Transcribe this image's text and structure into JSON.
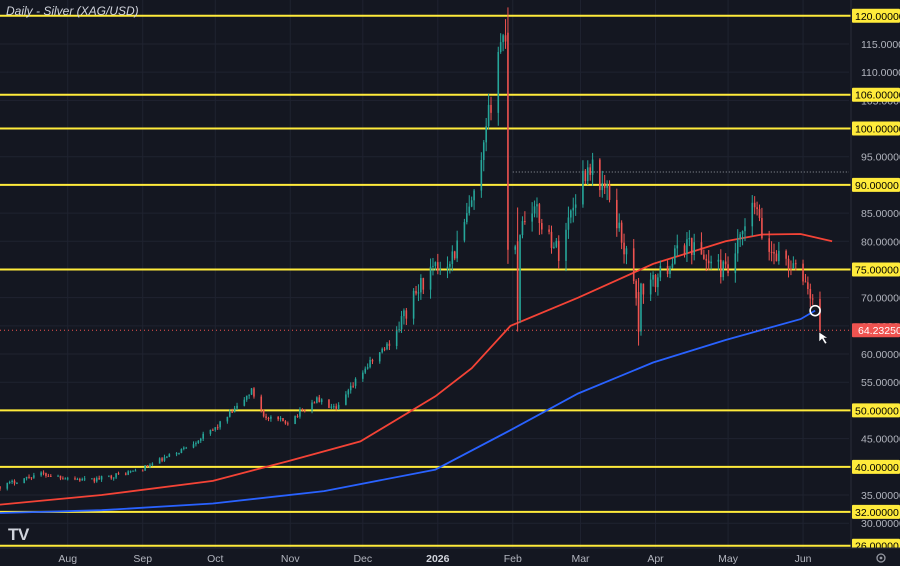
{
  "chart_data": {
    "type": "candlestick",
    "title": "Daily - Silver (XAG/USD)",
    "ylim": [
      25.6,
      122.8
    ],
    "y_ticks": [
      "30.00000",
      "35.00000",
      "40.00000",
      "45.00000",
      "50.00000",
      "55.00000",
      "60.00000",
      "65.00000",
      "70.00000",
      "75.00000",
      "80.00000",
      "85.00000",
      "90.00000",
      "95.00000",
      "100.00000",
      "105.00000",
      "110.00000",
      "115.00000",
      "120.00000"
    ],
    "y_tick_values": [
      30,
      35,
      40,
      45,
      50,
      55,
      60,
      65,
      70,
      75,
      80,
      85,
      90,
      95,
      100,
      105,
      110,
      115,
      120
    ],
    "x_ticks": [
      {
        "label": "Aug",
        "date": "2025-08-01",
        "bold": false
      },
      {
        "label": "Sep",
        "date": "2025-09-01",
        "bold": false
      },
      {
        "label": "Oct",
        "date": "2025-10-01",
        "bold": false
      },
      {
        "label": "Nov",
        "date": "2025-11-01",
        "bold": false
      },
      {
        "label": "Dec",
        "date": "2025-12-01",
        "bold": false
      },
      {
        "label": "2026",
        "date": "2026-01-01",
        "bold": true
      },
      {
        "label": "Feb",
        "date": "2026-02-01",
        "bold": false
      },
      {
        "label": "Mar",
        "date": "2026-03-01",
        "bold": false
      },
      {
        "label": "Apr",
        "date": "2026-04-01",
        "bold": false
      },
      {
        "label": "May",
        "date": "2026-05-01",
        "bold": false
      },
      {
        "label": "Jun",
        "date": "2026-06-01",
        "bold": false
      }
    ],
    "x_range": [
      "2025-07-04",
      "2026-06-20"
    ],
    "levels": [
      {
        "value": 120,
        "label": "120.00000"
      },
      {
        "value": 106,
        "label": "106.00000"
      },
      {
        "value": 100,
        "label": "100.00000"
      },
      {
        "value": 90,
        "label": "90.00000"
      },
      {
        "value": 75,
        "label": "75.00000"
      },
      {
        "value": 50,
        "label": "50.00000"
      },
      {
        "value": 40,
        "label": "40.00000"
      },
      {
        "value": 32,
        "label": "32.00000"
      },
      {
        "value": 26,
        "label": "26.00000"
      }
    ],
    "last_price": {
      "value": 64.2325,
      "label": "64.23250"
    },
    "dotted_high": {
      "value": 92.3,
      "from": "2026-02-01"
    },
    "marker": {
      "date": "2026-06-06",
      "value": 67.7
    },
    "price_path": [
      [
        "2025-07-04",
        36.5
      ],
      [
        "2025-07-20",
        38.8
      ],
      [
        "2025-08-10",
        37.5
      ],
      [
        "2025-08-31",
        39.5
      ],
      [
        "2025-09-15",
        42.5
      ],
      [
        "2025-09-30",
        46.5
      ],
      [
        "2025-10-10",
        50.5
      ],
      [
        "2025-10-16",
        53.5
      ],
      [
        "2025-10-22",
        48.5
      ],
      [
        "2025-10-31",
        48.0
      ],
      [
        "2025-11-12",
        52.0
      ],
      [
        "2025-11-20",
        50.0
      ],
      [
        "2025-12-01",
        57.0
      ],
      [
        "2025-12-12",
        62.0
      ],
      [
        "2025-12-26",
        73.0
      ],
      [
        "2026-01-08",
        78.0
      ],
      [
        "2026-01-18",
        90.0
      ],
      [
        "2026-01-26",
        114.0
      ],
      [
        "2026-01-29",
        117.0
      ],
      [
        "2026-02-01",
        78.5
      ],
      [
        "2026-02-08",
        87.0
      ],
      [
        "2026-02-20",
        78.0
      ],
      [
        "2026-03-01",
        91.0
      ],
      [
        "2026-03-05",
        93.5
      ],
      [
        "2026-03-14",
        87.0
      ],
      [
        "2026-03-24",
        71.0
      ],
      [
        "2026-03-31",
        72.5
      ],
      [
        "2026-04-14",
        80.0
      ],
      [
        "2026-04-24",
        76.0
      ],
      [
        "2026-05-01",
        74.5
      ],
      [
        "2026-05-12",
        86.5
      ],
      [
        "2026-05-16",
        79.0
      ],
      [
        "2026-05-24",
        77.0
      ],
      [
        "2026-06-02",
        73.0
      ],
      [
        "2026-06-08",
        64.2
      ]
    ],
    "special_bars": [
      {
        "date": "2026-01-30",
        "open": 117.0,
        "close": 78.5,
        "high": 121.5,
        "low": 76.0
      },
      {
        "date": "2026-02-03",
        "open": 80.0,
        "close": 66.0,
        "high": 86.0,
        "low": 64.0
      },
      {
        "date": "2026-03-25",
        "open": 71.0,
        "close": 64.0,
        "high": 73.5,
        "low": 61.5
      }
    ],
    "ma200": [
      [
        "2025-07-04",
        31.8
      ],
      [
        "2025-08-15",
        32.3
      ],
      [
        "2025-09-30",
        33.5
      ],
      [
        "2025-11-15",
        35.7
      ],
      [
        "2025-12-31",
        39.5
      ],
      [
        "2026-01-31",
        46.5
      ],
      [
        "2026-02-28",
        53.0
      ],
      [
        "2026-03-31",
        58.5
      ],
      [
        "2026-04-30",
        62.5
      ],
      [
        "2026-05-31",
        66.2
      ],
      [
        "2026-06-06",
        67.7
      ]
    ],
    "ma100": [
      [
        "2025-07-04",
        33.3
      ],
      [
        "2025-08-15",
        35.0
      ],
      [
        "2025-09-30",
        37.5
      ],
      [
        "2025-10-31",
        41.0
      ],
      [
        "2025-11-30",
        44.5
      ],
      [
        "2025-12-31",
        52.5
      ],
      [
        "2026-01-15",
        57.5
      ],
      [
        "2026-01-31",
        65.0
      ],
      [
        "2026-02-28",
        70.0
      ],
      [
        "2026-03-31",
        76.0
      ],
      [
        "2026-04-30",
        80.0
      ],
      [
        "2026-05-15",
        81.2
      ],
      [
        "2026-05-31",
        81.3
      ],
      [
        "2026-06-13",
        80.0
      ]
    ],
    "colors": {
      "background": "#141721",
      "bull": "#26a69a",
      "bear": "#ef5350",
      "level": "#ffeb3b",
      "ma200": "#2962ff",
      "ma100": "#f44336",
      "last_price_bg": "#ef5350",
      "axis_text": "#b2b5be"
    }
  }
}
